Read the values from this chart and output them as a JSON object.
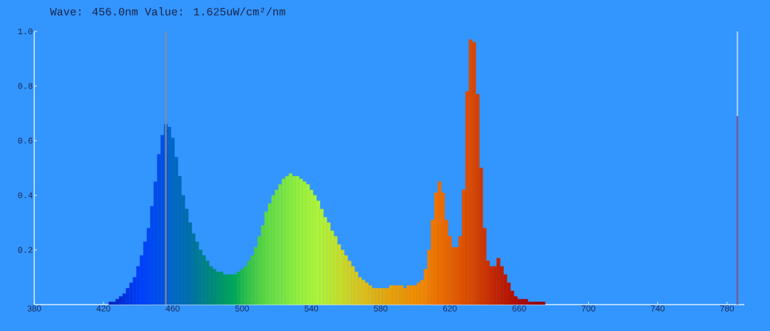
{
  "chart_data": {
    "type": "bar",
    "title": "Wave: 456.0nm Value: 1.625uW/cm²/nm",
    "xlim": [
      380,
      790
    ],
    "ylim": [
      0,
      1
    ],
    "xticks": [
      380,
      420,
      460,
      500,
      540,
      580,
      620,
      660,
      700,
      740,
      780
    ],
    "yticks": [
      0.2,
      0.4,
      0.6,
      0.8,
      {
        "value": 1,
        "label": "1.0"
      }
    ],
    "series": [
      {
        "x": [
          424,
          426,
          428,
          430,
          432,
          434,
          436,
          438,
          440,
          442,
          444,
          446,
          448,
          450,
          452,
          454,
          456,
          458,
          460,
          462,
          464,
          466,
          468,
          470,
          472,
          474,
          476,
          478,
          480,
          482,
          484,
          486,
          488,
          490,
          492,
          494,
          496,
          498,
          500,
          502,
          504,
          506,
          508,
          510,
          512,
          514,
          516,
          518,
          520,
          522,
          524,
          526,
          528,
          530,
          532,
          534,
          536,
          538,
          540,
          542,
          544,
          546,
          548,
          550,
          552,
          554,
          556,
          558,
          560,
          562,
          564,
          566,
          568,
          570,
          572,
          574,
          576,
          578,
          580,
          582,
          584,
          586,
          588,
          590,
          592,
          594,
          596,
          598,
          600,
          602,
          604,
          606,
          608,
          610,
          612,
          614,
          616,
          618,
          620,
          622,
          624,
          626,
          628,
          630,
          632,
          634,
          636,
          638,
          640,
          642,
          644,
          646,
          648,
          650,
          652,
          654,
          656,
          658,
          660,
          662,
          664,
          666,
          668,
          670,
          672,
          674
        ],
        "values": [
          0.01,
          0.01,
          0.02,
          0.03,
          0.04,
          0.06,
          0.08,
          0.1,
          0.14,
          0.18,
          0.23,
          0.28,
          0.36,
          0.45,
          0.55,
          0.62,
          0.66,
          0.65,
          0.61,
          0.54,
          0.47,
          0.4,
          0.35,
          0.3,
          0.26,
          0.23,
          0.2,
          0.18,
          0.16,
          0.14,
          0.13,
          0.12,
          0.12,
          0.11,
          0.11,
          0.11,
          0.11,
          0.12,
          0.13,
          0.14,
          0.16,
          0.18,
          0.21,
          0.25,
          0.29,
          0.34,
          0.37,
          0.4,
          0.42,
          0.44,
          0.46,
          0.47,
          0.48,
          0.47,
          0.47,
          0.46,
          0.45,
          0.44,
          0.42,
          0.4,
          0.38,
          0.35,
          0.32,
          0.3,
          0.27,
          0.25,
          0.22,
          0.2,
          0.18,
          0.16,
          0.14,
          0.12,
          0.1,
          0.09,
          0.08,
          0.07,
          0.06,
          0.06,
          0.06,
          0.06,
          0.06,
          0.07,
          0.07,
          0.07,
          0.07,
          0.06,
          0.07,
          0.07,
          0.07,
          0.08,
          0.09,
          0.13,
          0.2,
          0.31,
          0.41,
          0.45,
          0.41,
          0.31,
          0.25,
          0.21,
          0.21,
          0.25,
          0.42,
          0.78,
          0.97,
          0.96,
          0.77,
          0.5,
          0.28,
          0.16,
          0.14,
          0.14,
          0.17,
          0.14,
          0.11,
          0.08,
          0.05,
          0.03,
          0.02,
          0.02,
          0.02,
          0.01,
          0.01,
          0.01,
          0.01,
          0.01
        ],
        "colors": [
          "#0026b8",
          "#0028c0",
          "#002bc8",
          "#002ed2",
          "#0031dc",
          "#0034e4",
          "#0037ea",
          "#003af0",
          "#003ef6",
          "#0040f8",
          "#0043f6",
          "#0046f5",
          "#0048f0",
          "#004bec",
          "#004ee8",
          "#0050e4",
          "#0056de",
          "#0064cc",
          "#0067c4",
          "#0068c0",
          "#006aba",
          "#006bb4",
          "#006dae",
          "#0070a8",
          "#0074a0",
          "#007898",
          "#007c90",
          "#008088",
          "#00847f",
          "#00887a",
          "#008c76",
          "#00926f",
          "#009669",
          "#009a65",
          "#009f5f",
          "#00a45a",
          "#00aa55",
          "#10b152",
          "#20b850",
          "#2cbe4c",
          "#36c349",
          "#40c846",
          "#48cc44",
          "#50d044",
          "#58d444",
          "#60d844",
          "#66dc44",
          "#6bde44",
          "#70e044",
          "#74e244",
          "#7ae443",
          "#80e641",
          "#86e940",
          "#8cec3e",
          "#92ee3c",
          "#98f03b",
          "#9ef13a",
          "#a2f23a",
          "#a6f23a",
          "#aaf23a",
          "#aef23a",
          "#b2ef38",
          "#b6ec35",
          "#b9e933",
          "#bce631",
          "#c0e22f",
          "#c4de2d",
          "#c8d92a",
          "#cbd528",
          "#cfd026",
          "#d2cb24",
          "#d4c822",
          "#d7c41f",
          "#dac01d",
          "#dcbc1c",
          "#ddb71a",
          "#dfb217",
          "#e0ae13",
          "#e1ab12",
          "#e2a810",
          "#e4a40d",
          "#e6a10a",
          "#e89e08",
          "#e99b07",
          "#ea9806",
          "#eb9504",
          "#ed9203",
          "#ee8f02",
          "#ef8c01",
          "#f08a00",
          "#f18700",
          "#f28400",
          "#f07d00",
          "#ef7800",
          "#ee7300",
          "#ec6e00",
          "#eb6a00",
          "#e96500",
          "#e86200",
          "#e55c00",
          "#e35800",
          "#e05400",
          "#de5000",
          "#dc4c00",
          "#da4a00",
          "#d64600",
          "#d24000",
          "#ce3900",
          "#cc3600",
          "#c93000",
          "#c52a00",
          "#c22500",
          "#c02200",
          "#bd1e00",
          "#bb1a00",
          "#b81600",
          "#b51100",
          "#b10e00",
          "#ae0b00",
          "#aa0800",
          "#a70700",
          "#a30500",
          "#9f0400",
          "#9c0200",
          "#990100",
          "#960000"
        ]
      },
      {
        "type": "line",
        "x": [
          786,
          786
        ],
        "values": [
          0,
          0.69
        ],
        "color": "#6a5b9d"
      }
    ],
    "ref_lines": [
      {
        "axis": "x",
        "value": 456,
        "color": "#8d8d8d"
      },
      {
        "axis": "x",
        "value": 786,
        "color": "#aed4f8"
      }
    ]
  }
}
